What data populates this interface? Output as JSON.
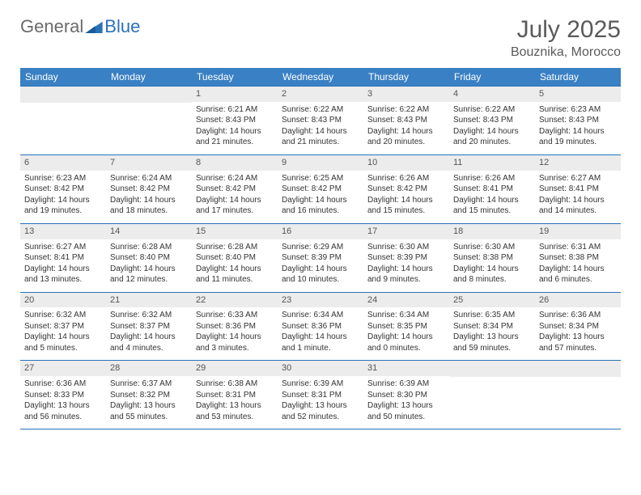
{
  "brand": {
    "general": "General",
    "blue": "Blue"
  },
  "title": "July 2025",
  "location": "Bouznika, Morocco",
  "colors": {
    "header_bg": "#3a80c4",
    "border": "#2a71b8",
    "daynum_bg": "#ececec",
    "text": "#333333",
    "title_text": "#5a5a5a"
  },
  "weekdays": [
    "Sunday",
    "Monday",
    "Tuesday",
    "Wednesday",
    "Thursday",
    "Friday",
    "Saturday"
  ],
  "weeks": [
    [
      null,
      null,
      {
        "n": "1",
        "sr": "Sunrise: 6:21 AM",
        "ss": "Sunset: 8:43 PM",
        "d1": "Daylight: 14 hours",
        "d2": "and 21 minutes."
      },
      {
        "n": "2",
        "sr": "Sunrise: 6:22 AM",
        "ss": "Sunset: 8:43 PM",
        "d1": "Daylight: 14 hours",
        "d2": "and 21 minutes."
      },
      {
        "n": "3",
        "sr": "Sunrise: 6:22 AM",
        "ss": "Sunset: 8:43 PM",
        "d1": "Daylight: 14 hours",
        "d2": "and 20 minutes."
      },
      {
        "n": "4",
        "sr": "Sunrise: 6:22 AM",
        "ss": "Sunset: 8:43 PM",
        "d1": "Daylight: 14 hours",
        "d2": "and 20 minutes."
      },
      {
        "n": "5",
        "sr": "Sunrise: 6:23 AM",
        "ss": "Sunset: 8:43 PM",
        "d1": "Daylight: 14 hours",
        "d2": "and 19 minutes."
      }
    ],
    [
      {
        "n": "6",
        "sr": "Sunrise: 6:23 AM",
        "ss": "Sunset: 8:42 PM",
        "d1": "Daylight: 14 hours",
        "d2": "and 19 minutes."
      },
      {
        "n": "7",
        "sr": "Sunrise: 6:24 AM",
        "ss": "Sunset: 8:42 PM",
        "d1": "Daylight: 14 hours",
        "d2": "and 18 minutes."
      },
      {
        "n": "8",
        "sr": "Sunrise: 6:24 AM",
        "ss": "Sunset: 8:42 PM",
        "d1": "Daylight: 14 hours",
        "d2": "and 17 minutes."
      },
      {
        "n": "9",
        "sr": "Sunrise: 6:25 AM",
        "ss": "Sunset: 8:42 PM",
        "d1": "Daylight: 14 hours",
        "d2": "and 16 minutes."
      },
      {
        "n": "10",
        "sr": "Sunrise: 6:26 AM",
        "ss": "Sunset: 8:42 PM",
        "d1": "Daylight: 14 hours",
        "d2": "and 15 minutes."
      },
      {
        "n": "11",
        "sr": "Sunrise: 6:26 AM",
        "ss": "Sunset: 8:41 PM",
        "d1": "Daylight: 14 hours",
        "d2": "and 15 minutes."
      },
      {
        "n": "12",
        "sr": "Sunrise: 6:27 AM",
        "ss": "Sunset: 8:41 PM",
        "d1": "Daylight: 14 hours",
        "d2": "and 14 minutes."
      }
    ],
    [
      {
        "n": "13",
        "sr": "Sunrise: 6:27 AM",
        "ss": "Sunset: 8:41 PM",
        "d1": "Daylight: 14 hours",
        "d2": "and 13 minutes."
      },
      {
        "n": "14",
        "sr": "Sunrise: 6:28 AM",
        "ss": "Sunset: 8:40 PM",
        "d1": "Daylight: 14 hours",
        "d2": "and 12 minutes."
      },
      {
        "n": "15",
        "sr": "Sunrise: 6:28 AM",
        "ss": "Sunset: 8:40 PM",
        "d1": "Daylight: 14 hours",
        "d2": "and 11 minutes."
      },
      {
        "n": "16",
        "sr": "Sunrise: 6:29 AM",
        "ss": "Sunset: 8:39 PM",
        "d1": "Daylight: 14 hours",
        "d2": "and 10 minutes."
      },
      {
        "n": "17",
        "sr": "Sunrise: 6:30 AM",
        "ss": "Sunset: 8:39 PM",
        "d1": "Daylight: 14 hours",
        "d2": "and 9 minutes."
      },
      {
        "n": "18",
        "sr": "Sunrise: 6:30 AM",
        "ss": "Sunset: 8:38 PM",
        "d1": "Daylight: 14 hours",
        "d2": "and 8 minutes."
      },
      {
        "n": "19",
        "sr": "Sunrise: 6:31 AM",
        "ss": "Sunset: 8:38 PM",
        "d1": "Daylight: 14 hours",
        "d2": "and 6 minutes."
      }
    ],
    [
      {
        "n": "20",
        "sr": "Sunrise: 6:32 AM",
        "ss": "Sunset: 8:37 PM",
        "d1": "Daylight: 14 hours",
        "d2": "and 5 minutes."
      },
      {
        "n": "21",
        "sr": "Sunrise: 6:32 AM",
        "ss": "Sunset: 8:37 PM",
        "d1": "Daylight: 14 hours",
        "d2": "and 4 minutes."
      },
      {
        "n": "22",
        "sr": "Sunrise: 6:33 AM",
        "ss": "Sunset: 8:36 PM",
        "d1": "Daylight: 14 hours",
        "d2": "and 3 minutes."
      },
      {
        "n": "23",
        "sr": "Sunrise: 6:34 AM",
        "ss": "Sunset: 8:36 PM",
        "d1": "Daylight: 14 hours",
        "d2": "and 1 minute."
      },
      {
        "n": "24",
        "sr": "Sunrise: 6:34 AM",
        "ss": "Sunset: 8:35 PM",
        "d1": "Daylight: 14 hours",
        "d2": "and 0 minutes."
      },
      {
        "n": "25",
        "sr": "Sunrise: 6:35 AM",
        "ss": "Sunset: 8:34 PM",
        "d1": "Daylight: 13 hours",
        "d2": "and 59 minutes."
      },
      {
        "n": "26",
        "sr": "Sunrise: 6:36 AM",
        "ss": "Sunset: 8:34 PM",
        "d1": "Daylight: 13 hours",
        "d2": "and 57 minutes."
      }
    ],
    [
      {
        "n": "27",
        "sr": "Sunrise: 6:36 AM",
        "ss": "Sunset: 8:33 PM",
        "d1": "Daylight: 13 hours",
        "d2": "and 56 minutes."
      },
      {
        "n": "28",
        "sr": "Sunrise: 6:37 AM",
        "ss": "Sunset: 8:32 PM",
        "d1": "Daylight: 13 hours",
        "d2": "and 55 minutes."
      },
      {
        "n": "29",
        "sr": "Sunrise: 6:38 AM",
        "ss": "Sunset: 8:31 PM",
        "d1": "Daylight: 13 hours",
        "d2": "and 53 minutes."
      },
      {
        "n": "30",
        "sr": "Sunrise: 6:39 AM",
        "ss": "Sunset: 8:31 PM",
        "d1": "Daylight: 13 hours",
        "d2": "and 52 minutes."
      },
      {
        "n": "31",
        "sr": "Sunrise: 6:39 AM",
        "ss": "Sunset: 8:30 PM",
        "d1": "Daylight: 13 hours",
        "d2": "and 50 minutes."
      },
      null,
      null
    ]
  ]
}
